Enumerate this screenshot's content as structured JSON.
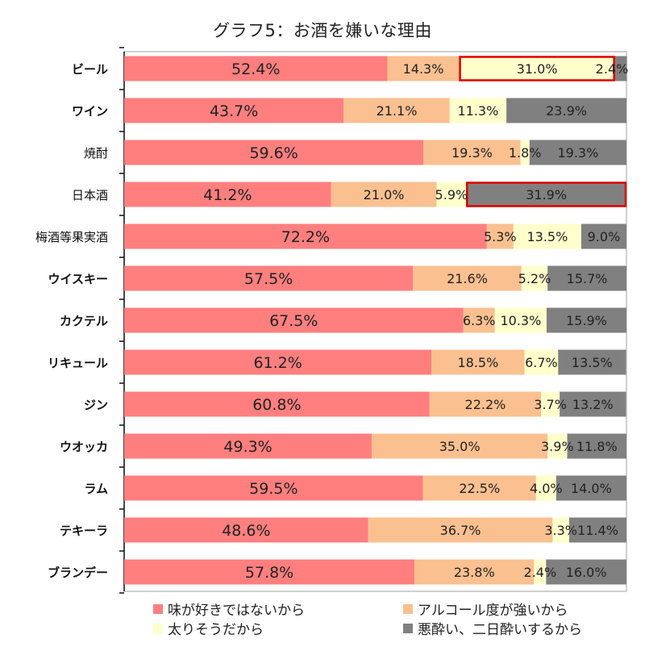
{
  "chart_data": {
    "type": "bar",
    "orientation": "horizontal",
    "stacked": true,
    "normalized": true,
    "title": "グラフ5：お酒を嫌いな理由",
    "xlabel": "",
    "ylabel": "",
    "xlim": [
      0,
      100
    ],
    "grid": false,
    "legend_position": "bottom",
    "categories": [
      "ビール",
      "ワイン",
      "焼酎",
      "日本酒",
      "梅酒等果実酒",
      "ウイスキー",
      "カクテル",
      "リキュール",
      "ジン",
      "ウオッカ",
      "ラム",
      "テキーラ",
      "ブランデー"
    ],
    "series": [
      {
        "name": "味が好きではないから",
        "color": "#ff7f7f",
        "values": [
          52.4,
          43.7,
          59.6,
          41.2,
          72.2,
          57.5,
          67.5,
          61.2,
          60.8,
          49.3,
          59.5,
          48.6,
          57.8
        ]
      },
      {
        "name": "アルコール度が強いから",
        "color": "#fac090",
        "values": [
          14.3,
          21.1,
          19.3,
          21.0,
          5.3,
          21.6,
          6.3,
          18.5,
          22.2,
          35.0,
          22.5,
          36.7,
          23.8
        ]
      },
      {
        "name": "太りそうだから",
        "color": "#ffffcc",
        "values": [
          31.0,
          11.3,
          1.8,
          5.9,
          13.5,
          5.2,
          10.3,
          6.7,
          3.7,
          3.9,
          4.0,
          3.3,
          2.4
        ]
      },
      {
        "name": "悪酔い、二日酔いするから",
        "color": "#808080",
        "values": [
          2.4,
          23.9,
          19.3,
          31.9,
          9.0,
          15.7,
          15.9,
          13.5,
          13.2,
          11.8,
          14.0,
          11.4,
          16.0
        ]
      }
    ],
    "data_labels": [
      [
        "52.4%",
        "14.3%",
        "31.0%",
        "2.4%"
      ],
      [
        "43.7%",
        "21.1%",
        "11.3%",
        "23.9%"
      ],
      [
        "59.6%",
        "19.3%",
        "1.8%",
        "19.3%"
      ],
      [
        "41.2%",
        "21.0%",
        "5.9%",
        "31.9%"
      ],
      [
        "72.2%",
        "5.3%",
        "13.5%",
        "9.0%"
      ],
      [
        "57.5%",
        "21.6%",
        "5.2%",
        "15.7%"
      ],
      [
        "67.5%",
        "6.3%",
        "10.3%",
        "15.9%"
      ],
      [
        "61.2%",
        "18.5%",
        "6.7%",
        "13.5%"
      ],
      [
        "60.8%",
        "22.2%",
        "3.7%",
        "13.2%"
      ],
      [
        "49.3%",
        "35.0%",
        "3.9%",
        "11.8%"
      ],
      [
        "59.5%",
        "22.5%",
        "4.0%",
        "14.0%"
      ],
      [
        "48.6%",
        "36.7%",
        "3.3%",
        "11.4%"
      ],
      [
        "57.8%",
        "23.8%",
        "2.4%",
        "16.0%"
      ]
    ],
    "light_weight_categories": [
      "焼酎",
      "日本酒",
      "梅酒等果実酒"
    ],
    "highlights": [
      {
        "category": "ビール",
        "series": "太りそうだから",
        "color": "#e00000"
      },
      {
        "category": "日本酒",
        "series": "悪酔い、二日酔いするから",
        "color": "#e00000"
      }
    ]
  }
}
